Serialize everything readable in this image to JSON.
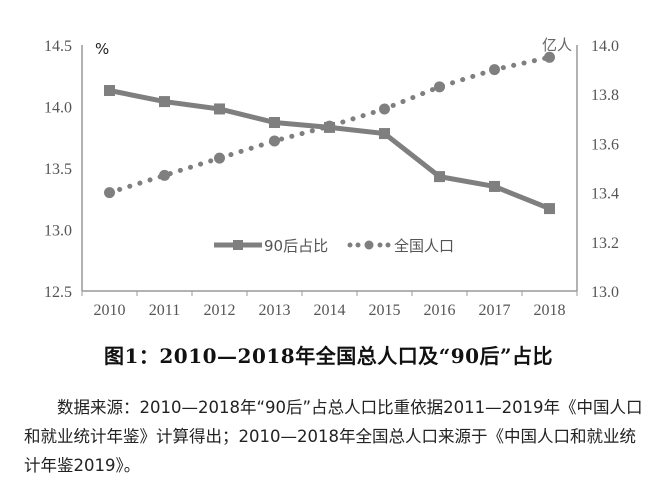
{
  "chart_data": {
    "type": "line",
    "title": "图1：2010—2018年全国总人口及“90后”占比",
    "categories": [
      "2010",
      "2011",
      "2012",
      "2013",
      "2014",
      "2015",
      "2016",
      "2017",
      "2018"
    ],
    "series": [
      {
        "name": "90后占比",
        "axis": "left",
        "marker": "square",
        "line": "solid",
        "values": [
          14.13,
          14.04,
          13.98,
          13.87,
          13.83,
          13.78,
          13.43,
          13.35,
          13.17
        ]
      },
      {
        "name": "全国人口",
        "axis": "right",
        "marker": "circle",
        "line": "dotted",
        "values": [
          13.4,
          13.47,
          13.54,
          13.61,
          13.67,
          13.74,
          13.83,
          13.9,
          13.95
        ]
      }
    ],
    "ylabel_left": "%",
    "ylabel_right": "亿人",
    "ylim_left": [
      12.5,
      14.5
    ],
    "yticks_left": [
      "14.5",
      "14.0",
      "13.5",
      "13.0",
      "12.5"
    ],
    "ylim_right": [
      13.0,
      14.0
    ],
    "yticks_right": [
      "14.0",
      "13.8",
      "13.6",
      "13.4",
      "13.2",
      "13.0"
    ],
    "grid": false,
    "legend_position": "inside-bottom-center",
    "color": "#7f7f7f"
  },
  "caption": "图1：2010—2018年全国总人口及“90后”占比",
  "source_note": "数据来源：2010—2018年“90后”占总人口比重依据2011—2019年《中国人口和就业统计年鉴》计算得出；2010—2018年全国总人口来源于《中国人口和就业统计年鉴2019》。"
}
